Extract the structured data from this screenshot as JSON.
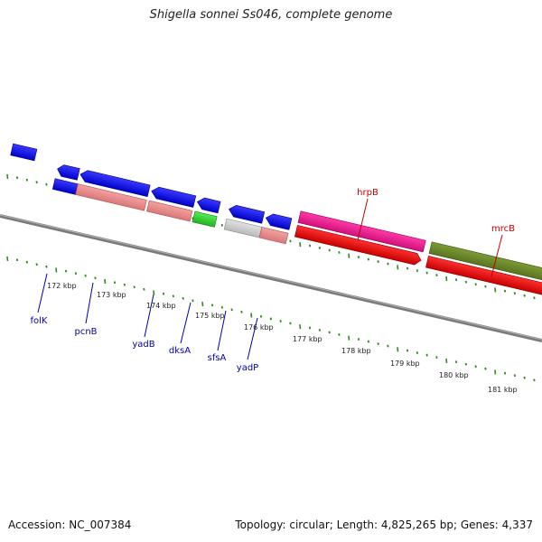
{
  "header": {
    "title": "Shigella sonnei Ss046, complete genome"
  },
  "footer": {
    "accession": "Accession: NC_007384",
    "summary": "Topology: circular; Length: 4,825,265 bp; Genes: 4,337"
  },
  "colors": {
    "backbone": "#8a8a8a",
    "tick": "#2e8b1e",
    "forward_label": "#c00000",
    "reverse_label": "#0000aa"
  },
  "scale_labels": [
    "172 kbp",
    "173 kbp",
    "174 kbp",
    "175 kbp",
    "176 kbp",
    "177 kbp",
    "178 kbp",
    "179 kbp",
    "180 kbp",
    "181 kbp"
  ],
  "genes": [
    {
      "name": "folK",
      "color": "#0000ee",
      "strand": "reverse"
    },
    {
      "name": "pcnB",
      "color": "#0000ee",
      "strand": "reverse"
    },
    {
      "name": "yadB",
      "color": "#0000ee",
      "strand": "reverse"
    },
    {
      "name": "dksA",
      "color": "#0000ee",
      "strand": "reverse"
    },
    {
      "name": "sfsA",
      "color": "#0000ee",
      "strand": "reverse"
    },
    {
      "name": "yadP",
      "color": "#0000ee",
      "strand": "reverse"
    },
    {
      "name": "hrpB",
      "color": "#ff1493",
      "strand": "forward"
    },
    {
      "name": "mrcB",
      "color": "#ff0000",
      "strand": "forward"
    }
  ]
}
